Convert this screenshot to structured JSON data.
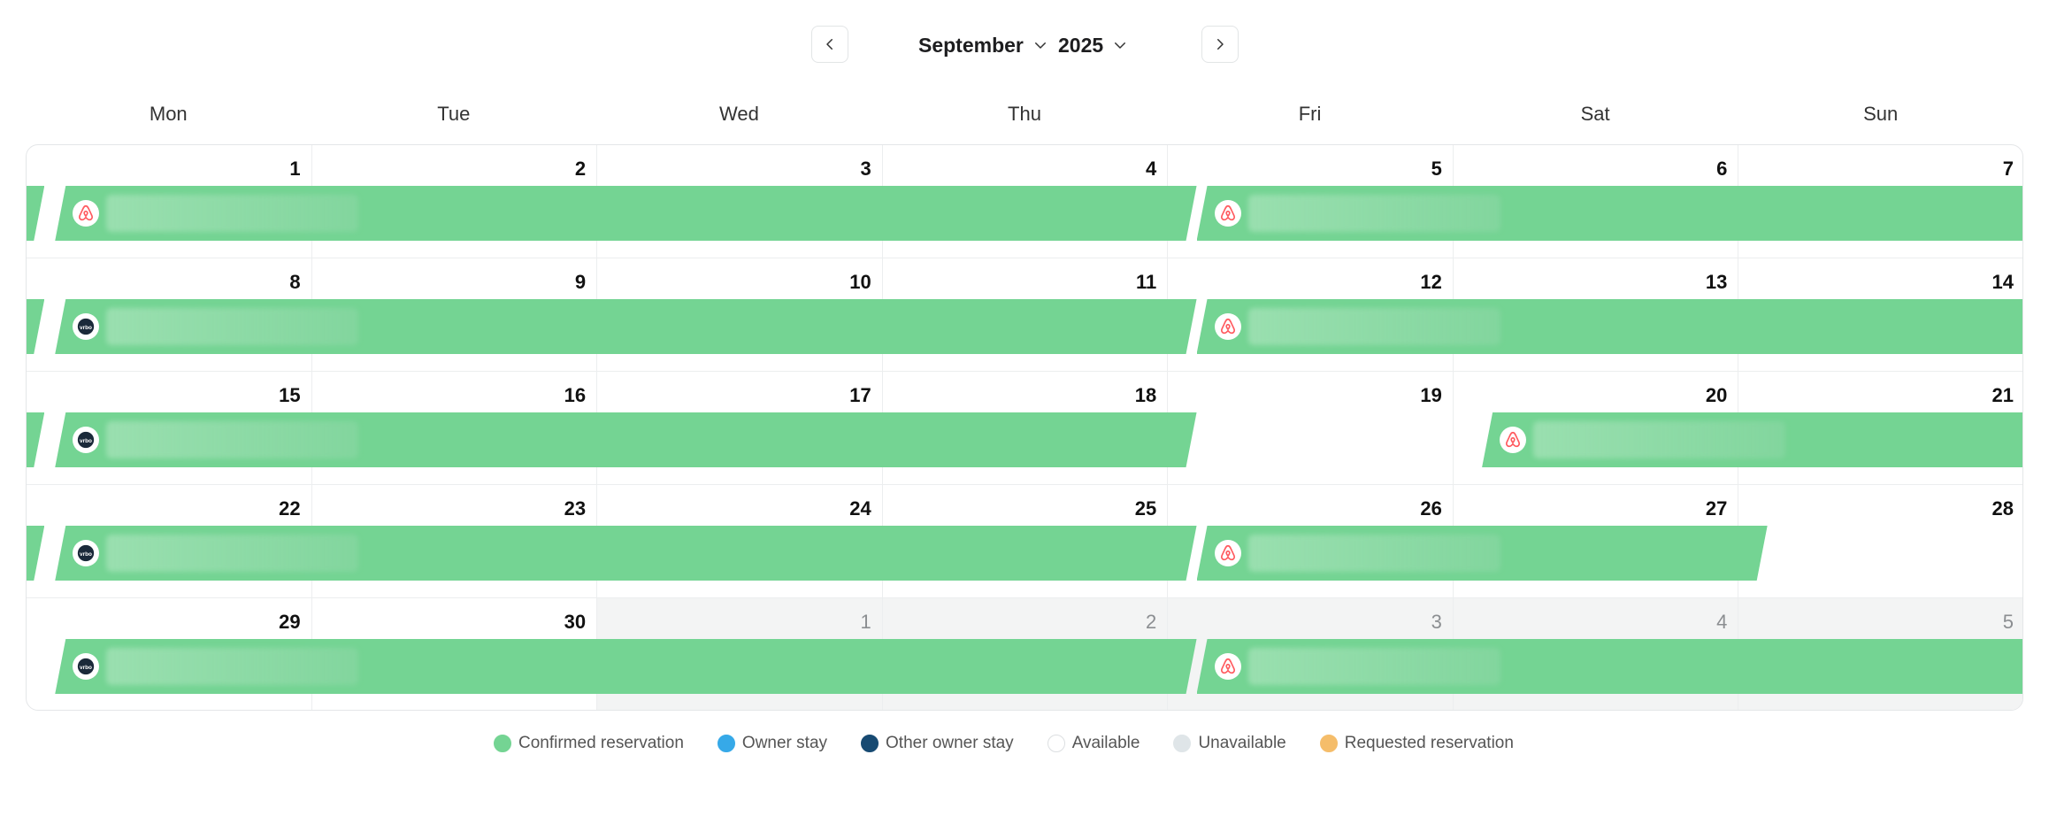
{
  "header": {
    "month": "September",
    "year": "2025"
  },
  "weekdays": [
    "Mon",
    "Tue",
    "Wed",
    "Thu",
    "Fri",
    "Sat",
    "Sun"
  ],
  "weeks": [
    [
      {
        "day": "1",
        "current": true
      },
      {
        "day": "2",
        "current": true
      },
      {
        "day": "3",
        "current": true
      },
      {
        "day": "4",
        "current": true
      },
      {
        "day": "5",
        "current": true
      },
      {
        "day": "6",
        "current": true
      },
      {
        "day": "7",
        "current": true
      }
    ],
    [
      {
        "day": "8",
        "current": true
      },
      {
        "day": "9",
        "current": true
      },
      {
        "day": "10",
        "current": true
      },
      {
        "day": "11",
        "current": true
      },
      {
        "day": "12",
        "current": true
      },
      {
        "day": "13",
        "current": true
      },
      {
        "day": "14",
        "current": true
      }
    ],
    [
      {
        "day": "15",
        "current": true
      },
      {
        "day": "16",
        "current": true
      },
      {
        "day": "17",
        "current": true
      },
      {
        "day": "18",
        "current": true
      },
      {
        "day": "19",
        "current": true
      },
      {
        "day": "20",
        "current": true
      },
      {
        "day": "21",
        "current": true
      }
    ],
    [
      {
        "day": "22",
        "current": true
      },
      {
        "day": "23",
        "current": true
      },
      {
        "day": "24",
        "current": true
      },
      {
        "day": "25",
        "current": true
      },
      {
        "day": "26",
        "current": true
      },
      {
        "day": "27",
        "current": true
      },
      {
        "day": "28",
        "current": true
      }
    ],
    [
      {
        "day": "29",
        "current": true
      },
      {
        "day": "30",
        "current": true
      },
      {
        "day": "1",
        "current": false
      },
      {
        "day": "2",
        "current": false
      },
      {
        "day": "3",
        "current": false
      },
      {
        "day": "4",
        "current": false
      },
      {
        "day": "5",
        "current": false
      }
    ]
  ],
  "reservations": [
    {
      "week": 0,
      "start": -1,
      "end": 0,
      "source": "none",
      "status": "confirmed"
    },
    {
      "week": 0,
      "start": 0,
      "end": 4,
      "source": "airbnb",
      "status": "confirmed"
    },
    {
      "week": 0,
      "start": 4,
      "end": 8,
      "source": "airbnb",
      "status": "confirmed"
    },
    {
      "week": 1,
      "start": -1,
      "end": 0,
      "source": "none",
      "status": "confirmed"
    },
    {
      "week": 1,
      "start": 0,
      "end": 4,
      "source": "vrbo",
      "status": "confirmed"
    },
    {
      "week": 1,
      "start": 4,
      "end": 8,
      "source": "airbnb",
      "status": "confirmed"
    },
    {
      "week": 2,
      "start": -1,
      "end": 0,
      "source": "none",
      "status": "confirmed"
    },
    {
      "week": 2,
      "start": 0,
      "end": 4,
      "source": "vrbo",
      "status": "confirmed"
    },
    {
      "week": 2,
      "start": 5,
      "end": 8,
      "source": "airbnb",
      "status": "confirmed"
    },
    {
      "week": 3,
      "start": -1,
      "end": 0,
      "source": "none",
      "status": "confirmed"
    },
    {
      "week": 3,
      "start": 0,
      "end": 4,
      "source": "vrbo",
      "status": "confirmed"
    },
    {
      "week": 3,
      "start": 4,
      "end": 6,
      "source": "airbnb",
      "status": "confirmed"
    },
    {
      "week": 4,
      "start": 0,
      "end": 4,
      "source": "vrbo",
      "status": "confirmed"
    },
    {
      "week": 4,
      "start": 4,
      "end": 8,
      "source": "airbnb",
      "status": "confirmed"
    }
  ],
  "legend": [
    {
      "label": "Confirmed reservation",
      "color": "#74d493",
      "border": "#74d493"
    },
    {
      "label": "Owner stay",
      "color": "#36a9e8",
      "border": "#36a9e8"
    },
    {
      "label": "Other owner stay",
      "color": "#174a72",
      "border": "#174a72"
    },
    {
      "label": "Available",
      "color": "#ffffff",
      "border": "#dcdfe1"
    },
    {
      "label": "Unavailable",
      "color": "#dfe5e8",
      "border": "#dfe5e8"
    },
    {
      "label": "Requested reservation",
      "color": "#f5bd6a",
      "border": "#f5bd6a"
    }
  ],
  "colors": {
    "confirmed": "#74d493",
    "airbnb": "#ff5a5f",
    "vrbo": "#1b2a3a"
  },
  "icons": {
    "prev": "chevron-left-icon",
    "next": "chevron-right-icon",
    "dropdown": "chevron-down-icon",
    "airbnb": "airbnb-icon",
    "vrbo": "vrbo-icon"
  }
}
